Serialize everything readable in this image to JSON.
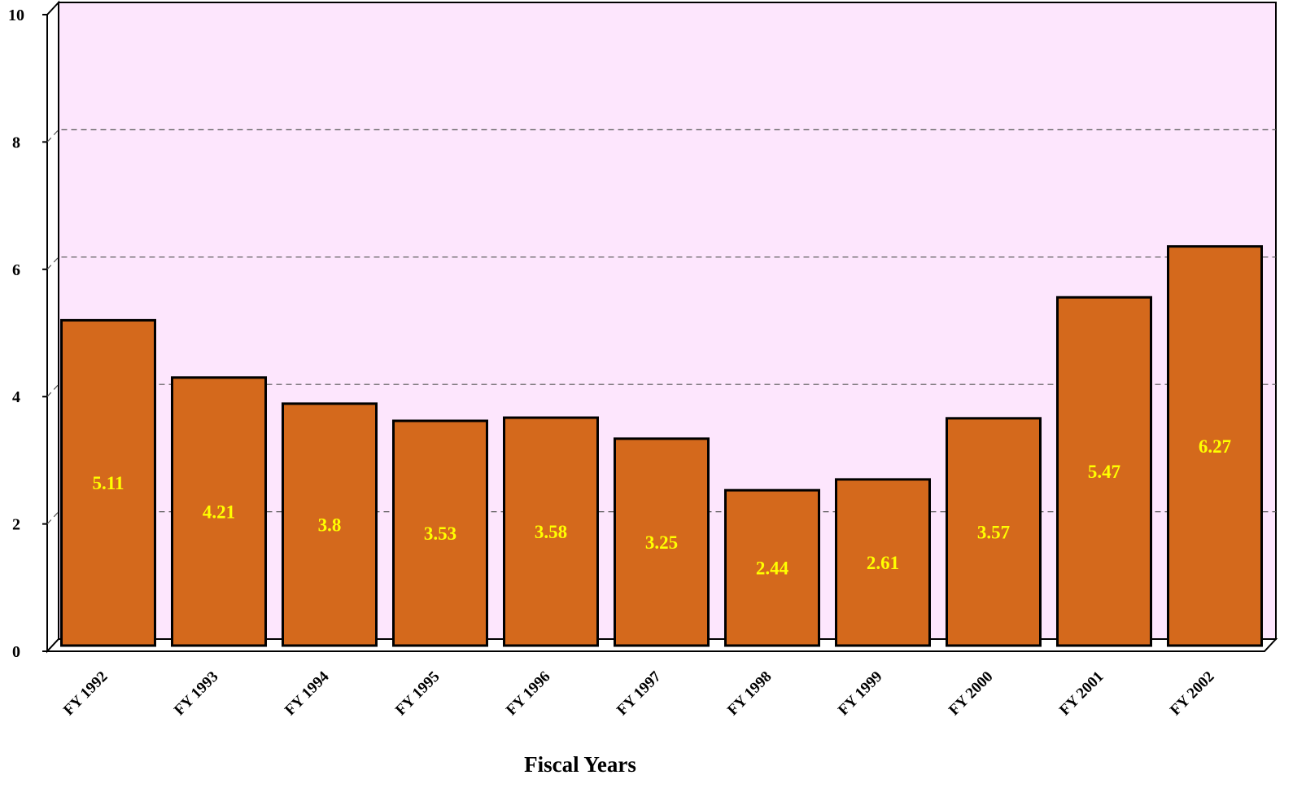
{
  "chart_data": {
    "type": "bar",
    "x_label": "Fiscal Years",
    "categories": [
      "FY 1992",
      "FY 1993",
      "FY 1994",
      "FY 1995",
      "FY 1996",
      "FY 1997",
      "FY 1998",
      "FY 1999",
      "FY 2000",
      "FY 2001",
      "FY 2002"
    ],
    "values": [
      5.11,
      4.21,
      3.8,
      3.53,
      3.58,
      3.25,
      2.44,
      2.61,
      3.57,
      5.47,
      6.27
    ],
    "color": "#d4691c",
    "label_color": "#ffff00",
    "background": "#fde6fd",
    "ylim": [
      0,
      10
    ],
    "yticks": [
      0,
      2,
      4,
      6,
      8,
      10
    ],
    "grid": true
  }
}
